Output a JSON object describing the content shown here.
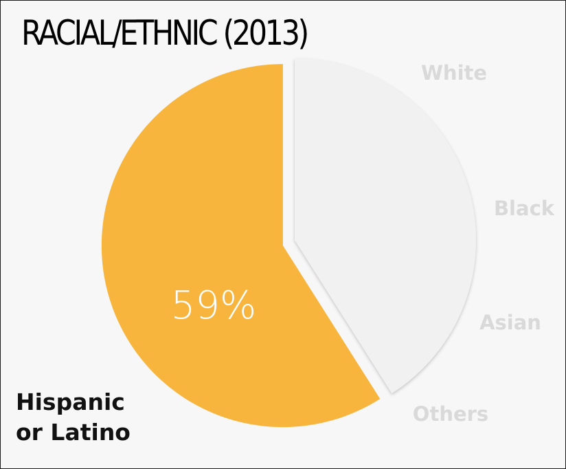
{
  "chart_data": {
    "type": "pie",
    "title": "RACIAL/ETHNIC (2013)",
    "slices": [
      {
        "label": "Hispanic or Latino",
        "value": 59,
        "value_label": "59%",
        "color": "#f7b53e",
        "highlighted": true
      },
      {
        "label": "White",
        "value": null,
        "color": "#f1f1f1"
      },
      {
        "label": "Black",
        "value": null,
        "color": "#f1f1f1"
      },
      {
        "label": "Asian",
        "value": null,
        "color": "#f1f1f1"
      },
      {
        "label": "Others",
        "value": null,
        "color": "#f1f1f1"
      }
    ],
    "highlight_label_lines": [
      "Hispanic",
      "or Latino"
    ],
    "other_labels": [
      "White",
      "Black",
      "Asian",
      "Others"
    ],
    "colors": {
      "highlight": "#f7b53e",
      "remainder": "#f1f1f1",
      "muted_label": "#d9d9d9",
      "value_text": "#ffffff",
      "background": "#f7f7f7"
    }
  }
}
